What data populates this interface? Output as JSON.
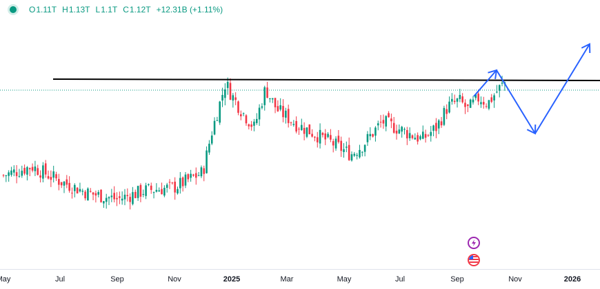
{
  "legend": {
    "o_label": "O",
    "o_value": "1.11T",
    "h_label": "H",
    "h_value": "1.13T",
    "l_label": "L",
    "l_value": "1.1T",
    "c_label": "C",
    "c_value": "1.12T",
    "change": "+12.31B (+1.11%)"
  },
  "colors": {
    "up": "#089981",
    "down": "#f23645",
    "resistance_line": "#000000",
    "projection": "#2962ff",
    "last_price_line": "#089981"
  },
  "icons": [
    "lightning-event-icon",
    "us-flag-event-icon"
  ],
  "chart_data": {
    "type": "candlestick",
    "title": "",
    "xlabel": "",
    "ylabel": "",
    "x_ticks": [
      "May",
      "Jul",
      "Sep",
      "Nov",
      "2025",
      "Mar",
      "May",
      "Jul",
      "Sep",
      "Nov",
      "2026"
    ],
    "bold_ticks": [
      "2025",
      "2026"
    ],
    "price_anchor": {
      "close": 1.12,
      "unit": "T"
    },
    "close_path": [
      {
        "t": 0,
        "y": 0.81
      },
      {
        "t": 1,
        "y": 0.84
      },
      {
        "t": 2,
        "y": 0.79
      },
      {
        "t": 3,
        "y": 0.75
      },
      {
        "t": 4,
        "y": 0.73
      },
      {
        "t": 5,
        "y": 0.76
      },
      {
        "t": 6,
        "y": 0.77
      },
      {
        "t": 7,
        "y": 0.82
      },
      {
        "t": 7.3,
        "y": 0.95
      },
      {
        "t": 7.8,
        "y": 1.12
      },
      {
        "t": 8.0,
        "y": 1.08
      },
      {
        "t": 8.4,
        "y": 1.02
      },
      {
        "t": 8.8,
        "y": 0.97
      },
      {
        "t": 9.2,
        "y": 1.1
      },
      {
        "t": 9.6,
        "y": 1.03
      },
      {
        "t": 10.3,
        "y": 0.98
      },
      {
        "t": 10.9,
        "y": 0.95
      },
      {
        "t": 11.5,
        "y": 0.92
      },
      {
        "t": 12.2,
        "y": 0.88
      },
      {
        "t": 12.6,
        "y": 0.91
      },
      {
        "t": 13.3,
        "y": 0.99
      },
      {
        "t": 14.0,
        "y": 0.96
      },
      {
        "t": 14.7,
        "y": 0.93
      },
      {
        "t": 15.2,
        "y": 0.97
      },
      {
        "t": 15.6,
        "y": 1.04
      },
      {
        "t": 16.0,
        "y": 1.06
      },
      {
        "t": 16.3,
        "y": 1.03
      },
      {
        "t": 16.7,
        "y": 1.07
      },
      {
        "t": 17.0,
        "y": 1.05
      },
      {
        "t": 17.4,
        "y": 1.1
      },
      {
        "t": 17.6,
        "y": 1.12
      }
    ],
    "resistance": {
      "value": 1.13
    },
    "projection": [
      {
        "t": 17.6,
        "y": 1.09
      },
      {
        "t": 18.4,
        "y": 1.14
      },
      {
        "t": 19.8,
        "y": 0.98
      },
      {
        "t": 21.9,
        "y": 1.2
      }
    ]
  }
}
